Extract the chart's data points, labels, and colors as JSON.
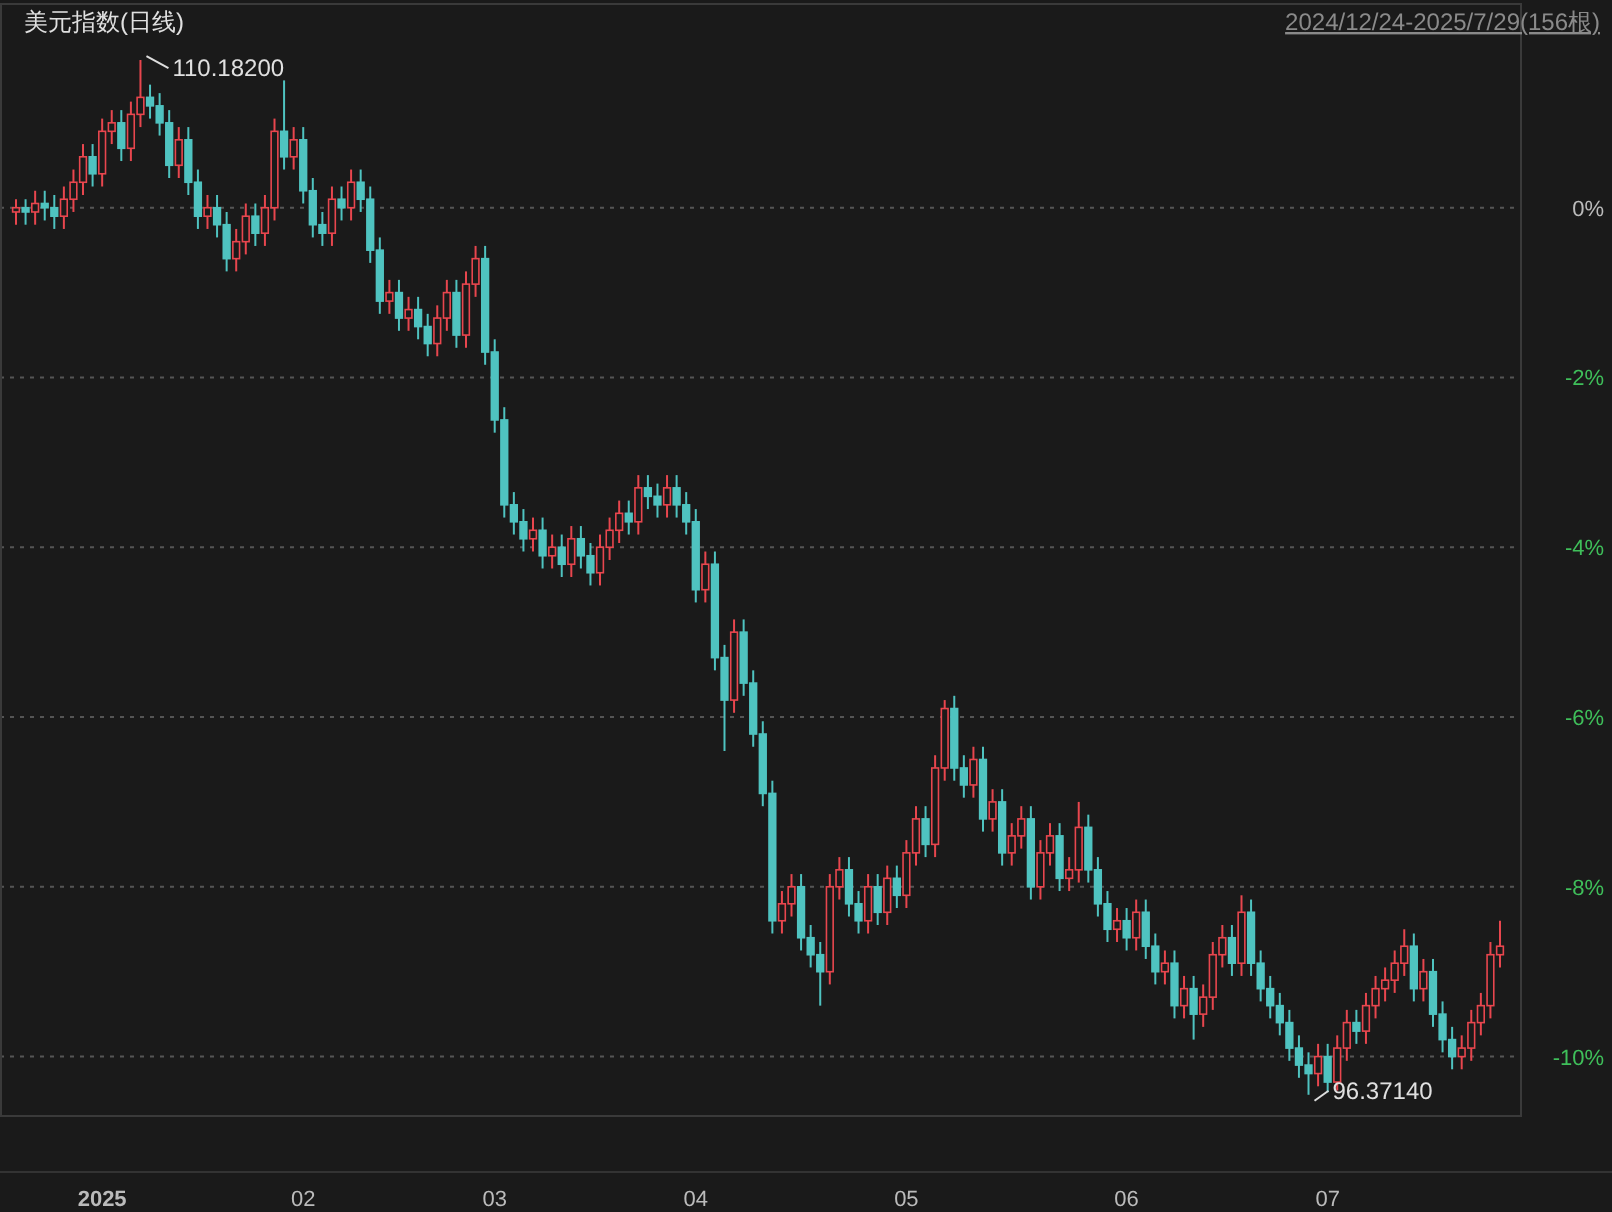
{
  "chart_data": {
    "type": "candlestick",
    "title": "美元指数(日线)",
    "subtitle": "2024/12/24-2025/7/29(156根)",
    "annotations": [
      "110.18200",
      "96.37140"
    ],
    "categories": [
      null,
      null,
      null,
      null,
      null,
      null,
      null,
      null,
      null,
      "2025",
      null,
      null,
      null,
      null,
      null,
      null,
      null,
      null,
      null,
      null,
      null,
      null,
      null,
      null,
      null,
      null,
      null,
      null,
      null,
      null,
      "02",
      null,
      null,
      null,
      null,
      null,
      null,
      null,
      null,
      null,
      null,
      null,
      null,
      null,
      null,
      null,
      null,
      null,
      null,
      null,
      "03",
      null,
      null,
      null,
      null,
      null,
      null,
      null,
      null,
      null,
      null,
      null,
      null,
      null,
      null,
      null,
      null,
      null,
      null,
      null,
      null,
      "04",
      null,
      null,
      null,
      null,
      null,
      null,
      null,
      null,
      null,
      null,
      null,
      null,
      null,
      null,
      null,
      null,
      null,
      null,
      null,
      null,
      null,
      "05",
      null,
      null,
      null,
      null,
      null,
      null,
      null,
      null,
      null,
      null,
      null,
      null,
      null,
      null,
      null,
      null,
      null,
      null,
      null,
      null,
      null,
      null,
      "06",
      null,
      null,
      null,
      null,
      null,
      null,
      null,
      null,
      null,
      null,
      null,
      null,
      null,
      null,
      null,
      null,
      null,
      null,
      null,
      null,
      "07",
      null,
      null,
      null,
      null,
      null,
      null,
      null,
      null,
      null,
      null,
      null,
      null,
      null,
      null,
      null,
      null,
      null,
      null
    ],
    "ohlc": [
      [
        -0.05,
        0.1,
        -0.2,
        0
      ],
      [
        0,
        0.1,
        -0.2,
        -0.05
      ],
      [
        -0.05,
        0.2,
        -0.2,
        0.05
      ],
      [
        0.05,
        0.2,
        -0.15,
        0
      ],
      [
        0,
        0.15,
        -0.25,
        -0.1
      ],
      [
        -0.1,
        0.25,
        -0.25,
        0.1
      ],
      [
        0.1,
        0.45,
        -0.05,
        0.3
      ],
      [
        0.3,
        0.75,
        0.15,
        0.6
      ],
      [
        0.6,
        0.75,
        0.25,
        0.4
      ],
      [
        0.4,
        1.05,
        0.25,
        0.9
      ],
      [
        0.9,
        1.15,
        0.75,
        1
      ],
      [
        1,
        1.15,
        0.55,
        0.7
      ],
      [
        0.7,
        1.25,
        0.55,
        1.1
      ],
      [
        1.1,
        1.74,
        0.95,
        1.3
      ],
      [
        1.3,
        1.45,
        1.05,
        1.2
      ],
      [
        1.2,
        1.35,
        0.85,
        1
      ],
      [
        1,
        1.15,
        0.35,
        0.5
      ],
      [
        0.5,
        0.95,
        0.35,
        0.8
      ],
      [
        0.8,
        0.95,
        0.15,
        0.3
      ],
      [
        0.3,
        0.45,
        -0.25,
        -0.1
      ],
      [
        -0.1,
        0.15,
        -0.25,
        0
      ],
      [
        0,
        0.15,
        -0.35,
        -0.2
      ],
      [
        -0.2,
        -0.05,
        -0.75,
        -0.6
      ],
      [
        -0.6,
        -0.25,
        -0.75,
        -0.4
      ],
      [
        -0.4,
        0.05,
        -0.55,
        -0.1
      ],
      [
        -0.1,
        0.05,
        -0.45,
        -0.3
      ],
      [
        -0.3,
        0.15,
        -0.45,
        0
      ],
      [
        0,
        1.05,
        -0.15,
        0.9
      ],
      [
        0.9,
        1.5,
        0.45,
        0.6
      ],
      [
        0.6,
        0.95,
        0.45,
        0.8
      ],
      [
        0.8,
        0.95,
        0.05,
        0.2
      ],
      [
        0.2,
        0.35,
        -0.35,
        -0.2
      ],
      [
        -0.2,
        -0.05,
        -0.45,
        -0.3
      ],
      [
        -0.3,
        0.25,
        -0.45,
        0.1
      ],
      [
        0.1,
        0.25,
        -0.15,
        0
      ],
      [
        0,
        0.45,
        -0.15,
        0.3
      ],
      [
        0.3,
        0.45,
        -0.05,
        0.1
      ],
      [
        0.1,
        0.25,
        -0.65,
        -0.5
      ],
      [
        -0.5,
        -0.35,
        -1.25,
        -1.1
      ],
      [
        -1.1,
        -0.85,
        -1.25,
        -1
      ],
      [
        -1,
        -0.85,
        -1.45,
        -1.3
      ],
      [
        -1.3,
        -1.05,
        -1.45,
        -1.2
      ],
      [
        -1.2,
        -1.05,
        -1.55,
        -1.4
      ],
      [
        -1.4,
        -1.25,
        -1.75,
        -1.6
      ],
      [
        -1.6,
        -1.15,
        -1.75,
        -1.3
      ],
      [
        -1.3,
        -0.85,
        -1.45,
        -1
      ],
      [
        -1,
        -0.85,
        -1.65,
        -1.5
      ],
      [
        -1.5,
        -0.75,
        -1.65,
        -0.9
      ],
      [
        -0.9,
        -0.45,
        -1.05,
        -0.6
      ],
      [
        -0.6,
        -0.45,
        -1.85,
        -1.7
      ],
      [
        -1.7,
        -1.55,
        -2.65,
        -2.5
      ],
      [
        -2.5,
        -2.35,
        -3.65,
        -3.5
      ],
      [
        -3.5,
        -3.35,
        -3.85,
        -3.7
      ],
      [
        -3.7,
        -3.55,
        -4.05,
        -3.9
      ],
      [
        -3.9,
        -3.65,
        -4.05,
        -3.8
      ],
      [
        -3.8,
        -3.65,
        -4.25,
        -4.1
      ],
      [
        -4.1,
        -3.85,
        -4.25,
        -4
      ],
      [
        -4,
        -3.85,
        -4.35,
        -4.2
      ],
      [
        -4.2,
        -3.75,
        -4.35,
        -3.9
      ],
      [
        -3.9,
        -3.75,
        -4.25,
        -4.1
      ],
      [
        -4.1,
        -3.95,
        -4.45,
        -4.3
      ],
      [
        -4.3,
        -3.85,
        -4.45,
        -4
      ],
      [
        -4,
        -3.65,
        -4.15,
        -3.8
      ],
      [
        -3.8,
        -3.45,
        -3.95,
        -3.6
      ],
      [
        -3.6,
        -3.45,
        -3.85,
        -3.7
      ],
      [
        -3.7,
        -3.15,
        -3.85,
        -3.3
      ],
      [
        -3.3,
        -3.15,
        -3.55,
        -3.4
      ],
      [
        -3.4,
        -3.25,
        -3.65,
        -3.5
      ],
      [
        -3.5,
        -3.15,
        -3.65,
        -3.3
      ],
      [
        -3.3,
        -3.15,
        -3.65,
        -3.5
      ],
      [
        -3.5,
        -3.35,
        -3.85,
        -3.7
      ],
      [
        -3.7,
        -3.55,
        -4.65,
        -4.5
      ],
      [
        -4.5,
        -4.05,
        -4.65,
        -4.2
      ],
      [
        -4.2,
        -4.05,
        -5.45,
        -5.3
      ],
      [
        -5.3,
        -5.15,
        -6.4,
        -5.8
      ],
      [
        -5.8,
        -4.85,
        -5.95,
        -5
      ],
      [
        -5,
        -4.85,
        -5.75,
        -5.6
      ],
      [
        -5.6,
        -5.45,
        -6.35,
        -6.2
      ],
      [
        -6.2,
        -6.05,
        -7.05,
        -6.9
      ],
      [
        -6.9,
        -6.75,
        -8.55,
        -8.4
      ],
      [
        -8.4,
        -8.05,
        -8.55,
        -8.2
      ],
      [
        -8.2,
        -7.85,
        -8.35,
        -8
      ],
      [
        -8,
        -7.85,
        -8.75,
        -8.6
      ],
      [
        -8.6,
        -8.45,
        -8.95,
        -8.8
      ],
      [
        -8.8,
        -8.65,
        -9.4,
        -9
      ],
      [
        -9,
        -7.85,
        -9.15,
        -8
      ],
      [
        -8,
        -7.65,
        -8.15,
        -7.8
      ],
      [
        -7.8,
        -7.65,
        -8.35,
        -8.2
      ],
      [
        -8.2,
        -8.05,
        -8.55,
        -8.4
      ],
      [
        -8.4,
        -7.85,
        -8.55,
        -8
      ],
      [
        -8,
        -7.85,
        -8.45,
        -8.3
      ],
      [
        -8.3,
        -7.75,
        -8.45,
        -7.9
      ],
      [
        -7.9,
        -7.75,
        -8.25,
        -8.1
      ],
      [
        -8.1,
        -7.45,
        -8.25,
        -7.6
      ],
      [
        -7.6,
        -7.05,
        -7.75,
        -7.2
      ],
      [
        -7.2,
        -7.05,
        -7.65,
        -7.5
      ],
      [
        -7.5,
        -6.45,
        -7.65,
        -6.6
      ],
      [
        -6.6,
        -5.8,
        -6.75,
        -5.9
      ],
      [
        -5.9,
        -5.75,
        -6.75,
        -6.6
      ],
      [
        -6.6,
        -6.45,
        -6.95,
        -6.8
      ],
      [
        -6.8,
        -6.35,
        -6.95,
        -6.5
      ],
      [
        -6.5,
        -6.35,
        -7.35,
        -7.2
      ],
      [
        -7.2,
        -6.85,
        -7.35,
        -7
      ],
      [
        -7,
        -6.85,
        -7.75,
        -7.6
      ],
      [
        -7.6,
        -7.25,
        -7.75,
        -7.4
      ],
      [
        -7.4,
        -7.05,
        -7.55,
        -7.2
      ],
      [
        -7.2,
        -7.05,
        -8.15,
        -8
      ],
      [
        -8,
        -7.45,
        -8.15,
        -7.6
      ],
      [
        -7.6,
        -7.25,
        -7.75,
        -7.4
      ],
      [
        -7.4,
        -7.25,
        -8.05,
        -7.9
      ],
      [
        -7.9,
        -7.65,
        -8.05,
        -7.8
      ],
      [
        -7.8,
        -7,
        -7.95,
        -7.3
      ],
      [
        -7.3,
        -7.15,
        -7.95,
        -7.8
      ],
      [
        -7.8,
        -7.65,
        -8.35,
        -8.2
      ],
      [
        -8.2,
        -8.05,
        -8.65,
        -8.5
      ],
      [
        -8.5,
        -8.25,
        -8.65,
        -8.4
      ],
      [
        -8.4,
        -8.25,
        -8.75,
        -8.6
      ],
      [
        -8.6,
        -8.15,
        -8.75,
        -8.3
      ],
      [
        -8.3,
        -8.15,
        -8.85,
        -8.7
      ],
      [
        -8.7,
        -8.55,
        -9.15,
        -9
      ],
      [
        -9,
        -8.75,
        -9.15,
        -8.9
      ],
      [
        -8.9,
        -8.75,
        -9.55,
        -9.4
      ],
      [
        -9.4,
        -9.05,
        -9.55,
        -9.2
      ],
      [
        -9.2,
        -9.05,
        -9.8,
        -9.5
      ],
      [
        -9.5,
        -9.15,
        -9.65,
        -9.3
      ],
      [
        -9.3,
        -8.65,
        -9.45,
        -8.8
      ],
      [
        -8.8,
        -8.45,
        -8.95,
        -8.6
      ],
      [
        -8.6,
        -8.45,
        -9.05,
        -8.9
      ],
      [
        -8.9,
        -8.1,
        -9.05,
        -8.3
      ],
      [
        -8.3,
        -8.15,
        -9.05,
        -8.9
      ],
      [
        -8.9,
        -8.75,
        -9.35,
        -9.2
      ],
      [
        -9.2,
        -9.05,
        -9.55,
        -9.4
      ],
      [
        -9.4,
        -9.25,
        -9.75,
        -9.6
      ],
      [
        -9.6,
        -9.45,
        -10.05,
        -9.9
      ],
      [
        -9.9,
        -9.75,
        -10.25,
        -10.1
      ],
      [
        -10.1,
        -9.95,
        -10.45,
        -10.2
      ],
      [
        -10.2,
        -9.85,
        -10.35,
        -10
      ],
      [
        -10,
        -9.85,
        -10.42,
        -10.3
      ],
      [
        -10.3,
        -9.75,
        -10.4,
        -9.9
      ],
      [
        -9.9,
        -9.45,
        -10.05,
        -9.6
      ],
      [
        -9.6,
        -9.45,
        -9.85,
        -9.7
      ],
      [
        -9.7,
        -9.25,
        -9.85,
        -9.4
      ],
      [
        -9.4,
        -9.05,
        -9.55,
        -9.2
      ],
      [
        -9.2,
        -8.95,
        -9.35,
        -9.1
      ],
      [
        -9.1,
        -8.75,
        -9.25,
        -8.9
      ],
      [
        -8.9,
        -8.5,
        -9.05,
        -8.7
      ],
      [
        -8.7,
        -8.55,
        -9.35,
        -9.2
      ],
      [
        -9.2,
        -8.85,
        -9.35,
        -9
      ],
      [
        -9,
        -8.85,
        -9.65,
        -9.5
      ],
      [
        -9.5,
        -9.35,
        -9.95,
        -9.8
      ],
      [
        -9.8,
        -9.65,
        -10.15,
        -10
      ],
      [
        -10,
        -9.75,
        -10.15,
        -9.9
      ],
      [
        -9.9,
        -9.45,
        -10.05,
        -9.6
      ],
      [
        -9.6,
        -9.25,
        -9.75,
        -9.4
      ],
      [
        -9.4,
        -8.65,
        -9.55,
        -8.8
      ],
      [
        -8.8,
        -8.4,
        -8.95,
        -8.7
      ]
    ],
    "colors": [
      "#e8464e",
      "#4fc3c0",
      "#e8464e",
      "#4fc3c0",
      "#4fc3c0",
      "#e8464e",
      "#e8464e",
      "#e8464e",
      "#4fc3c0",
      "#e8464e",
      "#e8464e",
      "#4fc3c0",
      "#e8464e",
      "#e8464e",
      "#4fc3c0",
      "#4fc3c0",
      "#4fc3c0",
      "#e8464e",
      "#4fc3c0",
      "#4fc3c0",
      "#e8464e",
      "#4fc3c0",
      "#4fc3c0",
      "#e8464e",
      "#e8464e",
      "#4fc3c0",
      "#e8464e",
      "#e8464e",
      "#4fc3c0",
      "#e8464e",
      "#4fc3c0",
      "#4fc3c0",
      "#4fc3c0",
      "#e8464e",
      "#4fc3c0",
      "#e8464e",
      "#4fc3c0",
      "#4fc3c0",
      "#4fc3c0",
      "#e8464e",
      "#4fc3c0",
      "#e8464e",
      "#4fc3c0",
      "#4fc3c0",
      "#e8464e",
      "#e8464e",
      "#4fc3c0",
      "#e8464e",
      "#e8464e",
      "#4fc3c0",
      "#4fc3c0",
      "#4fc3c0",
      "#4fc3c0",
      "#4fc3c0",
      "#e8464e",
      "#4fc3c0",
      "#e8464e",
      "#4fc3c0",
      "#e8464e",
      "#4fc3c0",
      "#4fc3c0",
      "#e8464e",
      "#e8464e",
      "#e8464e",
      "#4fc3c0",
      "#e8464e",
      "#4fc3c0",
      "#4fc3c0",
      "#e8464e",
      "#4fc3c0",
      "#4fc3c0",
      "#4fc3c0",
      "#e8464e",
      "#4fc3c0",
      "#4fc3c0",
      "#e8464e",
      "#4fc3c0",
      "#4fc3c0",
      "#4fc3c0",
      "#4fc3c0",
      "#e8464e",
      "#e8464e",
      "#4fc3c0",
      "#4fc3c0",
      "#4fc3c0",
      "#e8464e",
      "#e8464e",
      "#4fc3c0",
      "#4fc3c0",
      "#e8464e",
      "#4fc3c0",
      "#e8464e",
      "#4fc3c0",
      "#e8464e",
      "#e8464e",
      "#4fc3c0",
      "#e8464e",
      "#e8464e",
      "#4fc3c0",
      "#4fc3c0",
      "#e8464e",
      "#4fc3c0",
      "#e8464e",
      "#4fc3c0",
      "#e8464e",
      "#e8464e",
      "#4fc3c0",
      "#e8464e",
      "#e8464e",
      "#4fc3c0",
      "#e8464e",
      "#e8464e",
      "#4fc3c0",
      "#4fc3c0",
      "#4fc3c0",
      "#e8464e",
      "#4fc3c0",
      "#e8464e",
      "#4fc3c0",
      "#4fc3c0",
      "#e8464e",
      "#4fc3c0",
      "#e8464e",
      "#4fc3c0",
      "#e8464e",
      "#e8464e",
      "#e8464e",
      "#4fc3c0",
      "#e8464e",
      "#4fc3c0",
      "#4fc3c0",
      "#4fc3c0",
      "#4fc3c0",
      "#4fc3c0",
      "#4fc3c0",
      "#4fc3c0",
      "#e8464e",
      "#4fc3c0",
      "#e8464e",
      "#e8464e",
      "#4fc3c0",
      "#e8464e",
      "#e8464e",
      "#e8464e",
      "#e8464e",
      "#e8464e",
      "#4fc3c0",
      "#e8464e",
      "#4fc3c0",
      "#4fc3c0",
      "#4fc3c0",
      "#e8464e",
      "#e8464e",
      "#e8464e",
      "#e8464e",
      "#e8464e"
    ],
    "ylim": [
      -10.7,
      2.4
    ],
    "yticks": [
      {
        "value": 0,
        "label": "0%"
      },
      {
        "value": -2,
        "label": "-2%"
      },
      {
        "value": -4,
        "label": "-4%"
      },
      {
        "value": -6,
        "label": "-6%"
      },
      {
        "value": -8,
        "label": "-8%"
      },
      {
        "value": -10,
        "label": "-10%"
      }
    ],
    "grid": "y"
  }
}
